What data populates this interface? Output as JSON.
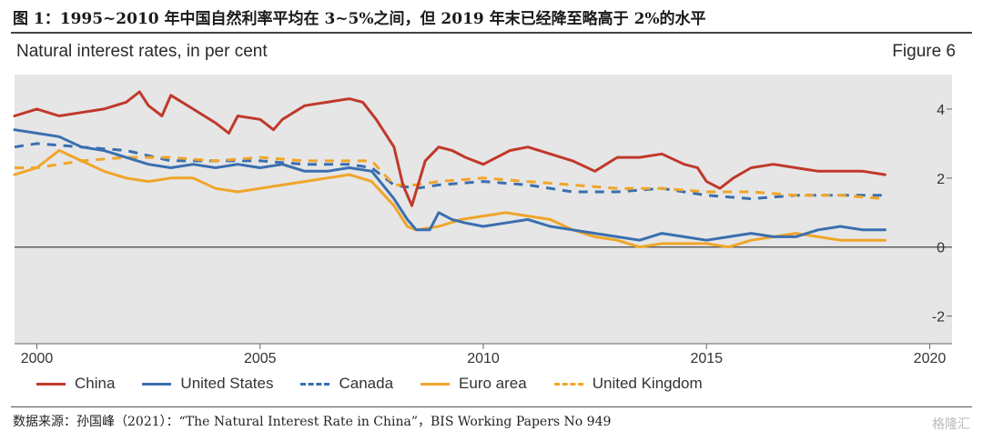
{
  "caption": "图 1：1995~2010 年中国自然利率平均在 3~5%之间，但 2019 年末已经降至略高于 2%的水平",
  "figure_label": "Figure 6",
  "source": "数据来源：孙国峰（2021）：“The Natural Interest Rate in China”，BIS Working Papers No 949",
  "watermark": "格隆汇",
  "colors": {
    "China": "#c0392b",
    "United States": "#3a6fb0",
    "Canada": "#3a6fb0",
    "Euro area": "#f0a52a",
    "United Kingdom": "#f0a52a",
    "plot_bg": "#e6e6e6"
  },
  "chart_data": {
    "type": "line",
    "title": "Natural interest rates, in per cent",
    "xlim": [
      1999.5,
      2020.5
    ],
    "ylim": [
      -2.8,
      5.0
    ],
    "xticks": [
      2000,
      2005,
      2010,
      2015,
      2020
    ],
    "yticks": [
      -2,
      0,
      2,
      4
    ],
    "grid": false,
    "legend": "bottom",
    "series": [
      {
        "name": "China",
        "style": "solid",
        "x": [
          1999.5,
          2000,
          2000.5,
          2001,
          2001.5,
          2002,
          2002.3,
          2002.5,
          2002.8,
          2003,
          2003.5,
          2004,
          2004.3,
          2004.5,
          2005,
          2005.3,
          2005.5,
          2006,
          2006.5,
          2007,
          2007.3,
          2007.6,
          2008,
          2008.2,
          2008.4,
          2008.7,
          2009,
          2009.3,
          2009.6,
          2010,
          2010.3,
          2010.6,
          2011,
          2011.5,
          2012,
          2012.5,
          2013,
          2013.5,
          2014,
          2014.5,
          2014.8,
          2015,
          2015.3,
          2015.6,
          2016,
          2016.5,
          2017,
          2017.5,
          2018,
          2018.5,
          2019
        ],
        "values": [
          3.8,
          4.0,
          3.8,
          3.9,
          4.0,
          4.2,
          4.5,
          4.1,
          3.8,
          4.4,
          4.0,
          3.6,
          3.3,
          3.8,
          3.7,
          3.4,
          3.7,
          4.1,
          4.2,
          4.3,
          4.2,
          3.7,
          2.9,
          1.8,
          1.2,
          2.5,
          2.9,
          2.8,
          2.6,
          2.4,
          2.6,
          2.8,
          2.9,
          2.7,
          2.5,
          2.2,
          2.6,
          2.6,
          2.7,
          2.4,
          2.3,
          1.9,
          1.7,
          2.0,
          2.3,
          2.4,
          2.3,
          2.2,
          2.2,
          2.2,
          2.1
        ]
      },
      {
        "name": "United States",
        "style": "solid",
        "x": [
          1999.5,
          2000,
          2000.5,
          2001,
          2001.5,
          2002,
          2002.5,
          2003,
          2003.5,
          2004,
          2004.5,
          2005,
          2005.5,
          2006,
          2006.5,
          2007,
          2007.5,
          2008,
          2008.3,
          2008.5,
          2008.8,
          2009,
          2009.3,
          2009.6,
          2010,
          2010.5,
          2011,
          2011.5,
          2012,
          2012.5,
          2013,
          2013.5,
          2014,
          2014.5,
          2015,
          2015.5,
          2016,
          2016.5,
          2017,
          2017.5,
          2018,
          2018.5,
          2019
        ],
        "values": [
          3.4,
          3.3,
          3.2,
          2.9,
          2.8,
          2.6,
          2.4,
          2.3,
          2.4,
          2.3,
          2.4,
          2.3,
          2.4,
          2.2,
          2.2,
          2.3,
          2.2,
          1.4,
          0.8,
          0.5,
          0.5,
          1.0,
          0.8,
          0.7,
          0.6,
          0.7,
          0.8,
          0.6,
          0.5,
          0.4,
          0.3,
          0.2,
          0.4,
          0.3,
          0.2,
          0.3,
          0.4,
          0.3,
          0.3,
          0.5,
          0.6,
          0.5,
          0.5
        ]
      },
      {
        "name": "Canada",
        "style": "dashed",
        "x": [
          1999.5,
          2000,
          2001,
          2002,
          2003,
          2004,
          2005,
          2006,
          2007,
          2007.5,
          2008,
          2008.5,
          2009,
          2010,
          2011,
          2012,
          2013,
          2014,
          2015,
          2016,
          2017,
          2018,
          2019
        ],
        "values": [
          2.9,
          3.0,
          2.9,
          2.8,
          2.5,
          2.5,
          2.5,
          2.4,
          2.4,
          2.3,
          1.8,
          1.7,
          1.8,
          1.9,
          1.8,
          1.6,
          1.6,
          1.7,
          1.5,
          1.4,
          1.5,
          1.5,
          1.5
        ]
      },
      {
        "name": "Euro area",
        "style": "solid",
        "x": [
          1999.5,
          2000,
          2000.5,
          2001,
          2001.5,
          2002,
          2002.5,
          2003,
          2003.5,
          2004,
          2004.5,
          2005,
          2005.5,
          2006,
          2006.5,
          2007,
          2007.5,
          2008,
          2008.3,
          2008.5,
          2009,
          2009.5,
          2010,
          2010.5,
          2011,
          2011.5,
          2012,
          2012.5,
          2013,
          2013.5,
          2014,
          2014.5,
          2015,
          2015.5,
          2016,
          2016.5,
          2017,
          2017.5,
          2018,
          2018.5,
          2019
        ],
        "values": [
          2.1,
          2.3,
          2.8,
          2.5,
          2.2,
          2.0,
          1.9,
          2.0,
          2.0,
          1.7,
          1.6,
          1.7,
          1.8,
          1.9,
          2.0,
          2.1,
          1.9,
          1.2,
          0.6,
          0.5,
          0.6,
          0.8,
          0.9,
          1.0,
          0.9,
          0.8,
          0.5,
          0.3,
          0.2,
          0.0,
          0.1,
          0.1,
          0.1,
          0.0,
          0.2,
          0.3,
          0.4,
          0.3,
          0.2,
          0.2,
          0.2
        ]
      },
      {
        "name": "United Kingdom",
        "style": "dashed",
        "x": [
          1999.5,
          2000,
          2001,
          2002,
          2003,
          2004,
          2005,
          2006,
          2007,
          2007.5,
          2008,
          2008.5,
          2009,
          2010,
          2011,
          2012,
          2013,
          2014,
          2015,
          2016,
          2017,
          2018,
          2019
        ],
        "values": [
          2.3,
          2.3,
          2.5,
          2.6,
          2.6,
          2.5,
          2.6,
          2.5,
          2.5,
          2.5,
          1.8,
          1.8,
          1.9,
          2.0,
          1.9,
          1.8,
          1.7,
          1.7,
          1.6,
          1.6,
          1.5,
          1.5,
          1.4
        ]
      }
    ]
  }
}
